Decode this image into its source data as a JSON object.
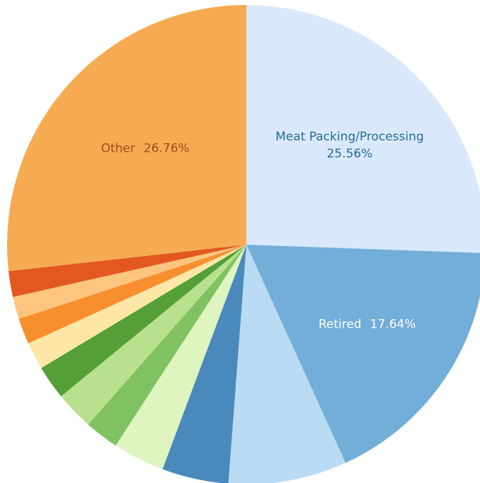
{
  "chart_data": {
    "type": "pie",
    "categories": [
      "Meat Packing/Processing",
      "Retired",
      null,
      null,
      null,
      null,
      null,
      null,
      null,
      null,
      null,
      null,
      "Other"
    ],
    "values": [
      25.56,
      17.64,
      8,
      4.5,
      3.5,
      2.3,
      2.6,
      2.3,
      1.85,
      1.75,
      1.5,
      1.74,
      26.76
    ],
    "value_labels": [
      "25.56%",
      "17.64%",
      null,
      null,
      null,
      null,
      null,
      null,
      null,
      null,
      null,
      null,
      "26.76%"
    ],
    "colors": [
      "#d9e9fb",
      "#72aed8",
      "#b9dbf4",
      "#4a89bc",
      "#dff5c0",
      "#80c262",
      "#b9e08f",
      "#54a037",
      "#fde7a8",
      "#f78f2e",
      "#fdc57e",
      "#e2581f",
      "#f6ab52"
    ],
    "label_colors": [
      "#2a6a9a",
      "#ffffff",
      null,
      null,
      null,
      null,
      null,
      null,
      null,
      null,
      null,
      null,
      "#a34b1f"
    ]
  }
}
